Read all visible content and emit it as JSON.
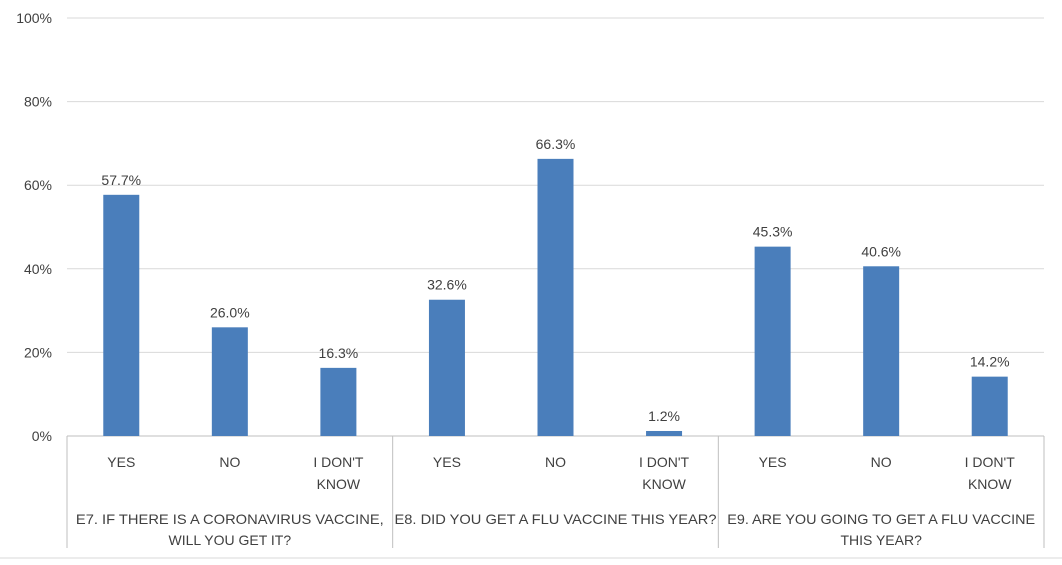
{
  "chart_data": {
    "type": "bar",
    "title": "",
    "xlabel": "",
    "ylabel": "",
    "ylim": [
      0,
      100
    ],
    "yticks": [
      "0%",
      "20%",
      "40%",
      "60%",
      "80%",
      "100%"
    ],
    "grid": true,
    "bar_color": "#4a7ebb",
    "groups": [
      {
        "label": "E7. IF THERE IS A CORONAVIRUS VACCINE, WILL YOU GET IT?",
        "lines": [
          "E7. IF THERE IS A CORONAVIRUS VACCINE,",
          "WILL YOU GET IT?"
        ],
        "categories": [
          [
            "YES"
          ],
          [
            "NO"
          ],
          [
            "I DON'T",
            "KNOW"
          ]
        ],
        "values": [
          57.7,
          26.0,
          16.3
        ],
        "labels": [
          "57.7%",
          "26.0%",
          "16.3%"
        ]
      },
      {
        "label": "E8. DID YOU GET A FLU VACCINE THIS YEAR?",
        "lines": [
          "E8. DID YOU GET A FLU VACCINE THIS YEAR?"
        ],
        "categories": [
          [
            "YES"
          ],
          [
            "NO"
          ],
          [
            "I DON'T",
            "KNOW"
          ]
        ],
        "values": [
          32.6,
          66.3,
          1.2
        ],
        "labels": [
          "32.6%",
          "66.3%",
          "1.2%"
        ]
      },
      {
        "label": "E9. ARE YOU GOING TO GET A FLU VACCINE THIS YEAR?",
        "lines": [
          "E9. ARE YOU GOING TO GET A FLU VACCINE",
          "THIS YEAR?"
        ],
        "categories": [
          [
            "YES"
          ],
          [
            "NO"
          ],
          [
            "I DON'T",
            "KNOW"
          ]
        ],
        "values": [
          45.3,
          40.6,
          14.2
        ],
        "labels": [
          "45.3%",
          "40.6%",
          "14.2%"
        ]
      }
    ]
  }
}
